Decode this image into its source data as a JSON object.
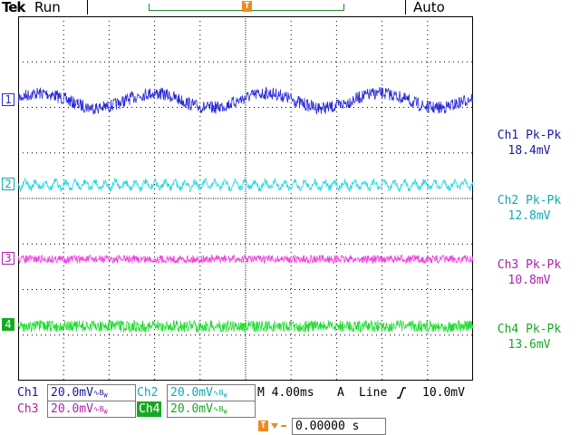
{
  "header": {
    "brand": "Tek",
    "run_state": "Run",
    "trigger_mode": "Auto",
    "trigger_marker": "T"
  },
  "channels": [
    {
      "id": "1",
      "color": "#2a2ad8"
    },
    {
      "id": "2",
      "color": "#22d8e6"
    },
    {
      "id": "3",
      "color": "#ee44e0"
    },
    {
      "id": "4",
      "color": "#22dd33"
    }
  ],
  "measurements": [
    {
      "label": "Ch1 Pk-Pk",
      "value": "18.4mV",
      "color": "#1a1a9a"
    },
    {
      "label": "Ch2 Pk-Pk",
      "value": "12.8mV",
      "color": "#14a8b4"
    },
    {
      "label": "Ch3 Pk-Pk",
      "value": "10.8mV",
      "color": "#b020a8"
    },
    {
      "label": "Ch4 Pk-Pk",
      "value": "13.6mV",
      "color": "#18a824"
    }
  ],
  "status": {
    "ch1_name": "Ch1",
    "ch1_scale": "20.0mV",
    "ch2_name": "Ch2",
    "ch2_scale": "20.0mV",
    "ch3_name": "Ch3",
    "ch3_scale": "20.0mV",
    "ch4_name": "Ch4",
    "ch4_scale": "20.0mV",
    "bw_symbol": "∿B",
    "bw_sub": "W",
    "timebase": "M 4.00ms",
    "trigger_source_label": "A",
    "trigger_source": "Line",
    "trigger_slope_icon": "rising-edge-icon",
    "trigger_level": "10.0mV",
    "trigger_offset": "0.00000 s"
  }
}
